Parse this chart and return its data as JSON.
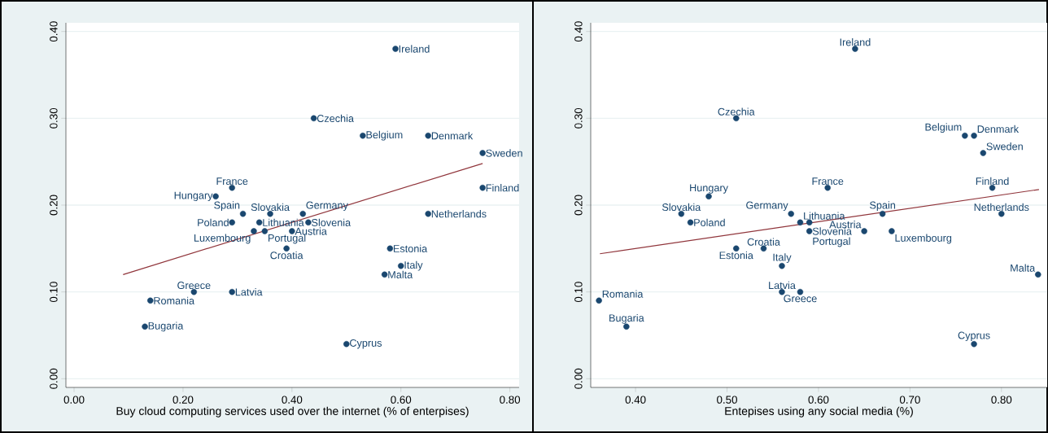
{
  "chart_data": [
    {
      "type": "scatter",
      "xlabel": "Buy cloud computing services used over the internet (% of enterpises)",
      "xlim": [
        -0.015,
        0.817
      ],
      "ylim": [
        -0.01,
        0.41
      ],
      "grid": "y",
      "xticks": [
        {
          "value": 0,
          "label": "0.00"
        },
        {
          "value": 0.2,
          "label": "0.20"
        },
        {
          "value": 0.4,
          "label": "0.40"
        },
        {
          "value": 0.6,
          "label": "0.60"
        },
        {
          "value": 0.8,
          "label": "0.80"
        }
      ],
      "yticks": [
        {
          "value": 0,
          "label": "0.00"
        },
        {
          "value": 0.1,
          "label": "0.10"
        },
        {
          "value": 0.2,
          "label": "0.20"
        },
        {
          "value": 0.3,
          "label": "0.30"
        },
        {
          "value": 0.4,
          "label": "0.40"
        }
      ],
      "series": [
        {
          "type": "scatter",
          "marker": "circle",
          "color": "#1a476f",
          "x": [
            0.59,
            0.44,
            0.53,
            0.65,
            0.75,
            0.75,
            0.65,
            0.29,
            0.26,
            0.31,
            0.36,
            0.42,
            0.29,
            0.34,
            0.43,
            0.33,
            0.35,
            0.4,
            0.39,
            0.58,
            0.6,
            0.57,
            0.22,
            0.29,
            0.14,
            0.13,
            0.5
          ],
          "values": [
            0.38,
            0.3,
            0.28,
            0.28,
            0.26,
            0.22,
            0.19,
            0.22,
            0.21,
            0.19,
            0.19,
            0.19,
            0.18,
            0.18,
            0.18,
            0.17,
            0.17,
            0.17,
            0.15,
            0.15,
            0.13,
            0.12,
            0.1,
            0.1,
            0.09,
            0.06,
            0.04
          ]
        },
        {
          "type": "line",
          "color": "#90353b",
          "x": [
            0.09,
            0.75
          ],
          "values": [
            0.12,
            0.248
          ]
        }
      ],
      "annotations": [
        {
          "text": "Ireland",
          "x": 0.59,
          "y": 0.38
        },
        {
          "text": "Czechia",
          "x": 0.44,
          "y": 0.3
        },
        {
          "text": "Belgium",
          "x": 0.53,
          "y": 0.28
        },
        {
          "text": "Denmark",
          "x": 0.65,
          "y": 0.28
        },
        {
          "text": "Sweden",
          "x": 0.75,
          "y": 0.26
        },
        {
          "text": "Finland",
          "x": 0.75,
          "y": 0.22
        },
        {
          "text": "Netherlands",
          "x": 0.65,
          "y": 0.19
        },
        {
          "text": "France",
          "x": 0.29,
          "y": 0.22
        },
        {
          "text": "Hungary",
          "x": 0.26,
          "y": 0.21
        },
        {
          "text": "Spain",
          "x": 0.31,
          "y": 0.19
        },
        {
          "text": "Slovakia",
          "x": 0.36,
          "y": 0.19
        },
        {
          "text": "Germany",
          "x": 0.42,
          "y": 0.19
        },
        {
          "text": "Poland",
          "x": 0.29,
          "y": 0.18
        },
        {
          "text": "Lithuania",
          "x": 0.34,
          "y": 0.18
        },
        {
          "text": "Slovenia",
          "x": 0.43,
          "y": 0.18
        },
        {
          "text": "Luxembourg",
          "x": 0.33,
          "y": 0.17
        },
        {
          "text": "Portugal",
          "x": 0.35,
          "y": 0.17
        },
        {
          "text": "Austria",
          "x": 0.4,
          "y": 0.17
        },
        {
          "text": "Croatia",
          "x": 0.39,
          "y": 0.15
        },
        {
          "text": "Estonia",
          "x": 0.58,
          "y": 0.15
        },
        {
          "text": "Italy",
          "x": 0.6,
          "y": 0.13
        },
        {
          "text": "Malta",
          "x": 0.57,
          "y": 0.12
        },
        {
          "text": "Greece",
          "x": 0.22,
          "y": 0.1
        },
        {
          "text": "Latvia",
          "x": 0.29,
          "y": 0.1
        },
        {
          "text": "Romania",
          "x": 0.14,
          "y": 0.09
        },
        {
          "text": "Bugaria",
          "x": 0.13,
          "y": 0.06
        },
        {
          "text": "Cyprus",
          "x": 0.5,
          "y": 0.04
        }
      ]
    },
    {
      "type": "scatter",
      "xlabel": "Entepises using any social media (%)",
      "xlim": [
        0.351,
        0.85
      ],
      "ylim": [
        -0.01,
        0.41
      ],
      "grid": "y",
      "xticks": [
        {
          "value": 0.4,
          "label": "0.40"
        },
        {
          "value": 0.5,
          "label": "0.50"
        },
        {
          "value": 0.6,
          "label": "0.60"
        },
        {
          "value": 0.7,
          "label": "0.70"
        },
        {
          "value": 0.8,
          "label": "0.80"
        }
      ],
      "yticks": [
        {
          "value": 0,
          "label": "0.00"
        },
        {
          "value": 0.1,
          "label": "0.10"
        },
        {
          "value": 0.2,
          "label": "0.20"
        },
        {
          "value": 0.3,
          "label": "0.30"
        },
        {
          "value": 0.4,
          "label": "0.40"
        }
      ],
      "series": [
        {
          "type": "scatter",
          "marker": "circle",
          "color": "#1a476f",
          "x": [
            0.64,
            0.51,
            0.76,
            0.77,
            0.78,
            0.79,
            0.8,
            0.61,
            0.48,
            0.67,
            0.45,
            0.57,
            0.46,
            0.58,
            0.59,
            0.68,
            0.59,
            0.65,
            0.54,
            0.51,
            0.56,
            0.84,
            0.58,
            0.56,
            0.36,
            0.39,
            0.77
          ],
          "values": [
            0.38,
            0.3,
            0.28,
            0.28,
            0.26,
            0.22,
            0.19,
            0.22,
            0.21,
            0.19,
            0.19,
            0.19,
            0.18,
            0.18,
            0.17,
            0.17,
            0.18,
            0.17,
            0.15,
            0.15,
            0.13,
            0.12,
            0.1,
            0.1,
            0.09,
            0.06,
            0.04
          ]
        },
        {
          "type": "line",
          "color": "#90353b",
          "x": [
            0.361,
            0.841
          ],
          "values": [
            0.144,
            0.218
          ]
        }
      ],
      "annotations": [
        {
          "text": "Ireland",
          "x": 0.64,
          "y": 0.38
        },
        {
          "text": "Czechia",
          "x": 0.51,
          "y": 0.3
        },
        {
          "text": "Belgium",
          "x": 0.76,
          "y": 0.28
        },
        {
          "text": "Denmark",
          "x": 0.77,
          "y": 0.28
        },
        {
          "text": "Sweden",
          "x": 0.78,
          "y": 0.26
        },
        {
          "text": "Finland",
          "x": 0.79,
          "y": 0.22
        },
        {
          "text": "Netherlands",
          "x": 0.8,
          "y": 0.19
        },
        {
          "text": "France",
          "x": 0.61,
          "y": 0.22
        },
        {
          "text": "Hungary",
          "x": 0.48,
          "y": 0.21
        },
        {
          "text": "Spain",
          "x": 0.67,
          "y": 0.19
        },
        {
          "text": "Slovakia",
          "x": 0.45,
          "y": 0.19
        },
        {
          "text": "Germany",
          "x": 0.57,
          "y": 0.19
        },
        {
          "text": "Poland",
          "x": 0.46,
          "y": 0.18
        },
        {
          "text": "Lithuania",
          "x": 0.58,
          "y": 0.18
        },
        {
          "text": "Slovenia",
          "x": 0.59,
          "y": 0.17
        },
        {
          "text": "Luxembourg",
          "x": 0.68,
          "y": 0.17
        },
        {
          "text": "Portugal",
          "x": 0.59,
          "y": 0.18
        },
        {
          "text": "Austria",
          "x": 0.65,
          "y": 0.17
        },
        {
          "text": "Croatia",
          "x": 0.54,
          "y": 0.15
        },
        {
          "text": "Estonia",
          "x": 0.51,
          "y": 0.15
        },
        {
          "text": "Italy",
          "x": 0.56,
          "y": 0.13
        },
        {
          "text": "Malta",
          "x": 0.84,
          "y": 0.12
        },
        {
          "text": "Greece",
          "x": 0.58,
          "y": 0.1
        },
        {
          "text": "Latvia",
          "x": 0.56,
          "y": 0.1
        },
        {
          "text": "Romania",
          "x": 0.36,
          "y": 0.09
        },
        {
          "text": "Bugaria",
          "x": 0.39,
          "y": 0.06
        },
        {
          "text": "Cyprus",
          "x": 0.77,
          "y": 0.04
        }
      ]
    }
  ]
}
